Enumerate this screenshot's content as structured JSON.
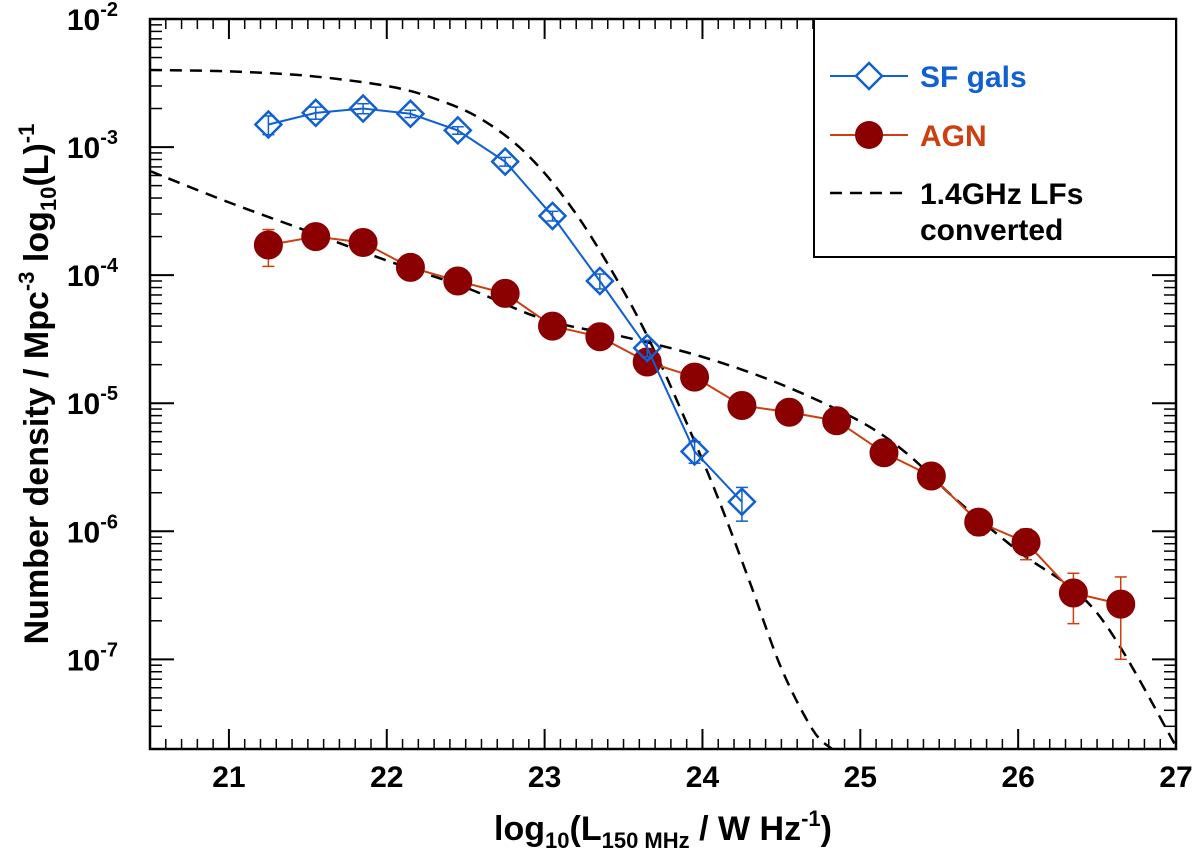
{
  "chart_data": {
    "type": "line",
    "xlabel": {
      "pre": "log",
      "sub1": "10",
      "mid": "(L",
      "sub2": "150 MHz",
      "post": " / W Hz",
      "sup": "-1",
      "end": ")"
    },
    "ylabel": {
      "pre": "Number density / Mpc",
      "sup1": "-3",
      "mid": " log",
      "sub": "10",
      "mid2": "(L)",
      "sup2": "-1"
    },
    "xlim": [
      20.5,
      27
    ],
    "ylim_log10": [
      -7.7,
      -2
    ],
    "y_scale": "log",
    "x_ticks": [
      "21",
      "22",
      "23",
      "24",
      "25",
      "26",
      "27"
    ],
    "y_ticks": [
      {
        "base": "10",
        "exp": "-2"
      },
      {
        "base": "10",
        "exp": "-3"
      },
      {
        "base": "10",
        "exp": "-4"
      },
      {
        "base": "10",
        "exp": "-5"
      },
      {
        "base": "10",
        "exp": "-6"
      },
      {
        "base": "10",
        "exp": "-7"
      }
    ],
    "legend_position": "top-right",
    "series": [
      {
        "name": "SF gals",
        "marker": "diamond-open",
        "color": "#1060d0",
        "x": [
          21.25,
          21.55,
          21.85,
          22.15,
          22.45,
          22.75,
          23.05,
          23.35,
          23.65,
          23.95,
          24.25
        ],
        "y": [
          0.0015,
          0.00185,
          0.002,
          0.00182,
          0.00135,
          0.00077,
          0.00029,
          9e-05,
          2.7e-05,
          4.2e-06,
          1.7e-06
        ],
        "yerr": [
          0.00025,
          0.0002,
          0.00018,
          0.00012,
          9e-05,
          6e-05,
          2.5e-05,
          1.2e-05,
          4e-06,
          8e-07,
          5e-07
        ]
      },
      {
        "name": "AGN",
        "marker": "circle-filled",
        "color": "#cc4010",
        "fill": "#8b0000",
        "x": [
          21.25,
          21.55,
          21.85,
          22.15,
          22.45,
          22.75,
          23.05,
          23.35,
          23.65,
          23.95,
          24.25,
          24.55,
          24.85,
          25.15,
          25.45,
          25.75,
          26.05,
          26.35,
          26.65
        ],
        "y": [
          0.000172,
          0.0002,
          0.00018,
          0.000115,
          9e-05,
          7.2e-05,
          4e-05,
          3.3e-05,
          2.1e-05,
          1.6e-05,
          9.6e-06,
          8.5e-06,
          7.3e-06,
          4.1e-06,
          2.7e-06,
          1.18e-06,
          8.2e-07,
          3.3e-07,
          2.7e-07
        ],
        "yerr": [
          5.5e-05,
          2e-05,
          1.5e-05,
          1.2e-05,
          9e-06,
          8e-06,
          6e-06,
          4e-06,
          3e-06,
          2.5e-06,
          1.5e-06,
          1.2e-06,
          1e-06,
          6e-07,
          5e-07,
          2.5e-07,
          2.2e-07,
          1.4e-07,
          1.7e-07
        ]
      },
      {
        "name": "1.4GHz LFs converted",
        "name_lines": [
          "1.4GHz LFs",
          "converted"
        ],
        "style": "dashed",
        "color": "#000000",
        "curves": [
          {
            "x": [
              20.5,
              21.0,
              21.5,
              22.0,
              22.3,
              22.6,
              22.9,
              23.2,
              23.5,
              23.7,
              23.9,
              24.1,
              24.3,
              24.5,
              24.7,
              24.82
            ],
            "y": [
              0.004,
              0.0039,
              0.0036,
              0.003,
              0.0024,
              0.00165,
              0.00085,
              0.0003,
              7.5e-05,
              2.5e-05,
              7e-06,
              1.8e-06,
              4e-07,
              8.5e-08,
              2.8e-08,
              2e-08
            ]
          },
          {
            "x": [
              20.5,
              21.0,
              21.5,
              22.0,
              22.5,
              23.0,
              23.5,
              24.0,
              24.5,
              25.0,
              25.3,
              25.6,
              26.0,
              26.5,
              27.0
            ],
            "y": [
              0.00065,
              0.00037,
              0.00022,
              0.00013,
              8e-05,
              4.5e-05,
              3.3e-05,
              2.3e-05,
              1.4e-05,
              7.2e-06,
              4e-06,
              1.8e-06,
              7e-07,
              2.3e-07,
              2.1e-08
            ]
          }
        ]
      }
    ]
  }
}
